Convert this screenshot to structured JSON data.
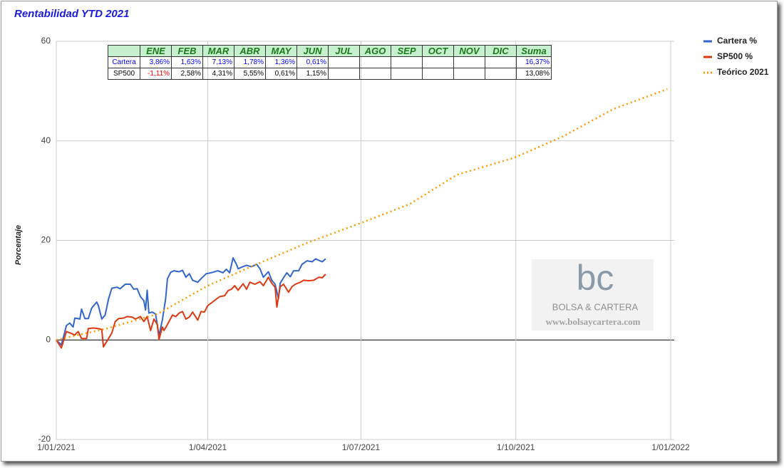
{
  "chart_data": {
    "type": "line",
    "title": "Rentabilidad YTD 2021",
    "y_label": "Porcentaje",
    "xlim": [
      "2021-01-01",
      "2022-01-01"
    ],
    "xticks": [
      {
        "value": "2021-01-01",
        "label": "1/01/2021"
      },
      {
        "value": "2021-04-01",
        "label": "1/04/2021"
      },
      {
        "value": "2021-07-01",
        "label": "1/07/2021"
      },
      {
        "value": "2021-10-01",
        "label": "1/10/2021"
      },
      {
        "value": "2022-01-01",
        "label": "1/01/2022"
      }
    ],
    "ylim": [
      -20,
      60
    ],
    "yticks": [
      -20,
      0,
      20,
      40,
      60
    ],
    "grid": true,
    "legend": "right",
    "series": [
      {
        "name": "Cartera %",
        "color": "#3366cc",
        "style": "solid",
        "x": [
          "2021-01-01",
          "2021-01-04",
          "2021-01-07",
          "2021-01-09",
          "2021-01-11",
          "2021-01-12",
          "2021-01-15",
          "2021-01-16",
          "2021-01-18",
          "2021-01-20",
          "2021-01-22",
          "2021-01-25",
          "2021-01-26",
          "2021-01-28",
          "2021-01-30",
          "2021-02-01",
          "2021-02-03",
          "2021-02-06",
          "2021-02-08",
          "2021-02-11",
          "2021-02-14",
          "2021-02-16",
          "2021-02-18",
          "2021-02-20",
          "2021-02-22",
          "2021-02-23",
          "2021-02-24",
          "2021-02-25",
          "2021-02-27",
          "2021-03-01",
          "2021-03-03",
          "2021-03-05",
          "2021-03-07",
          "2021-03-08",
          "2021-03-10",
          "2021-03-12",
          "2021-03-15",
          "2021-03-17",
          "2021-03-19",
          "2021-03-21",
          "2021-03-23",
          "2021-03-26",
          "2021-03-28",
          "2021-03-31",
          "2021-04-03",
          "2021-04-07",
          "2021-04-10",
          "2021-04-12",
          "2021-04-14",
          "2021-04-16",
          "2021-04-18",
          "2021-04-19",
          "2021-04-21",
          "2021-04-24",
          "2021-04-27",
          "2021-04-30",
          "2021-05-02",
          "2021-05-04",
          "2021-05-07",
          "2021-05-09",
          "2021-05-11",
          "2021-05-13",
          "2021-05-14",
          "2021-05-16",
          "2021-05-18",
          "2021-05-20",
          "2021-05-22",
          "2021-05-25",
          "2021-05-27",
          "2021-05-30",
          "2021-06-02",
          "2021-06-04",
          "2021-06-06",
          "2021-06-08",
          "2021-06-10"
        ],
        "values": [
          0,
          -1.0,
          2.9,
          3.4,
          2.6,
          4.4,
          4.2,
          6.2,
          4.3,
          4.3,
          6.4,
          7.6,
          6.9,
          4.2,
          5.0,
          8.2,
          10.4,
          10.6,
          10.3,
          11.2,
          11.2,
          10.2,
          10.3,
          8.7,
          7.9,
          6.0,
          10.0,
          5.4,
          5.6,
          5.2,
          0.9,
          4.0,
          8.4,
          12.3,
          13.6,
          13.9,
          13.7,
          14.0,
          12.6,
          13.3,
          12.0,
          11.6,
          12.3,
          13.3,
          13.5,
          13.9,
          13.5,
          14.2,
          13.5,
          16.5,
          15.2,
          14.3,
          14.6,
          15.0,
          14.7,
          15.2,
          14.3,
          12.6,
          13.7,
          12.0,
          11.2,
          8.3,
          11.4,
          12.5,
          13.5,
          12.7,
          13.9,
          13.9,
          15.2,
          15.9,
          15.7,
          16.3,
          16.0,
          15.7,
          16.3
        ]
      },
      {
        "name": "SP500 %",
        "color": "#dc3912",
        "style": "solid",
        "x": [
          "2021-01-01",
          "2021-01-04",
          "2021-01-07",
          "2021-01-10",
          "2021-01-12",
          "2021-01-14",
          "2021-01-16",
          "2021-01-19",
          "2021-01-20",
          "2021-01-23",
          "2021-01-26",
          "2021-01-28",
          "2021-01-29",
          "2021-01-31",
          "2021-02-03",
          "2021-02-05",
          "2021-02-07",
          "2021-02-10",
          "2021-02-12",
          "2021-02-15",
          "2021-02-17",
          "2021-02-20",
          "2021-02-22",
          "2021-02-24",
          "2021-02-26",
          "2021-02-28",
          "2021-03-02",
          "2021-03-03",
          "2021-03-05",
          "2021-03-06",
          "2021-03-08",
          "2021-03-11",
          "2021-03-13",
          "2021-03-15",
          "2021-03-17",
          "2021-03-19",
          "2021-03-21",
          "2021-03-23",
          "2021-03-26",
          "2021-03-28",
          "2021-03-30",
          "2021-04-01",
          "2021-04-03",
          "2021-04-06",
          "2021-04-08",
          "2021-04-11",
          "2021-04-13",
          "2021-04-15",
          "2021-04-17",
          "2021-04-19",
          "2021-04-22",
          "2021-04-24",
          "2021-04-26",
          "2021-04-29",
          "2021-05-02",
          "2021-05-04",
          "2021-05-07",
          "2021-05-09",
          "2021-05-11",
          "2021-05-12",
          "2021-05-14",
          "2021-05-16",
          "2021-05-19",
          "2021-05-21",
          "2021-05-23",
          "2021-05-26",
          "2021-05-28",
          "2021-05-31",
          "2021-06-03",
          "2021-06-06",
          "2021-06-08",
          "2021-06-10"
        ],
        "values": [
          0,
          -1.6,
          1.7,
          1.3,
          1.0,
          1.7,
          0.3,
          0.3,
          2.3,
          2.4,
          2.3,
          2.1,
          -1.4,
          -0.3,
          1.4,
          3.7,
          4.3,
          4.4,
          4.7,
          4.6,
          4.2,
          4.7,
          3.7,
          4.7,
          1.9,
          4.2,
          3.1,
          0.1,
          2.6,
          1.9,
          3.1,
          5.0,
          4.7,
          5.4,
          5.7,
          4.2,
          4.6,
          5.6,
          4.0,
          5.7,
          5.6,
          6.9,
          7.4,
          8.2,
          8.7,
          8.9,
          9.9,
          10.2,
          10.9,
          10.0,
          11.3,
          10.2,
          11.6,
          11.2,
          11.7,
          10.9,
          12.6,
          11.4,
          10.6,
          6.6,
          10.7,
          11.2,
          9.6,
          10.7,
          11.2,
          11.6,
          12.0,
          11.9,
          12.0,
          12.6,
          12.5,
          13.2
        ]
      },
      {
        "name": "Teórico 2021",
        "color": "#ff9900",
        "style": "dotted",
        "x": [
          "2021-01-01",
          "2021-01-31",
          "2021-03-02",
          "2021-04-01",
          "2021-04-30",
          "2021-05-30",
          "2021-07-01",
          "2021-07-30",
          "2021-08-27",
          "2021-09-30",
          "2021-10-29",
          "2021-11-28",
          "2021-12-30"
        ],
        "values": [
          0,
          2.3,
          5.2,
          10.9,
          15.2,
          19.5,
          23.5,
          27.3,
          33.2,
          36.6,
          40.9,
          46.4,
          50.4
        ]
      }
    ],
    "table": {
      "header": [
        "ENE",
        "FEB",
        "MAR",
        "ABR",
        "MAY",
        "JUN",
        "JUL",
        "AGO",
        "SEP",
        "OCT",
        "NOV",
        "DIC",
        "Suma"
      ],
      "negative_color": "#ff0000",
      "rows": [
        {
          "label": "Cartera",
          "color": "#0000ff",
          "cells": [
            "3,86%",
            "1,63%",
            "7,13%",
            "1,78%",
            "1,36%",
            "0,61%",
            null,
            null,
            null,
            null,
            null,
            null,
            "16,37%"
          ]
        },
        {
          "label": "SP500",
          "color": "#000000",
          "cells": [
            "-1,11%",
            "2,58%",
            "4,31%",
            "5,55%",
            "0,61%",
            "1,15%",
            null,
            null,
            null,
            null,
            null,
            null,
            "13,08%"
          ]
        }
      ]
    },
    "watermark": {
      "logo": "bc",
      "name": "BOLSA & CARTERA",
      "url": "www.bolsaycartera.com"
    }
  }
}
